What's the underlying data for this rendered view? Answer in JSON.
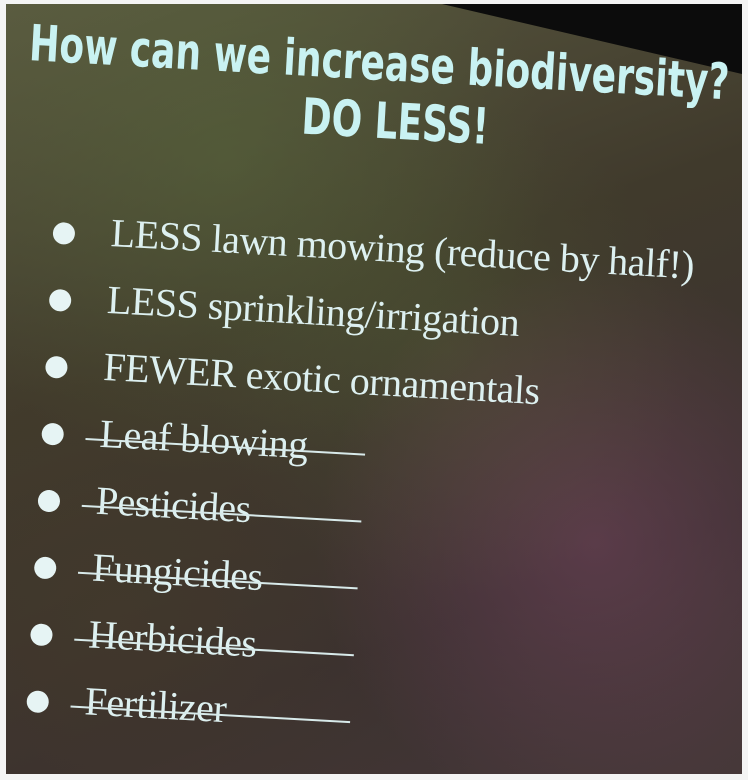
{
  "slide": {
    "title": "How can we increase biodiversity?",
    "subtitle": "DO LESS!",
    "bullets": [
      {
        "text": "LESS lawn mowing (reduce by half!)",
        "struck": false
      },
      {
        "text": "LESS sprinkling/irrigation",
        "struck": false
      },
      {
        "text": "FEWER exotic ornamentals",
        "struck": false
      },
      {
        "text": "Leaf blowing",
        "struck": true
      },
      {
        "text": "Pesticides",
        "struck": true
      },
      {
        "text": "Fungicides",
        "struck": true
      },
      {
        "text": "Herbicides",
        "struck": true
      },
      {
        "text": "Fertilizer",
        "struck": true
      }
    ]
  }
}
